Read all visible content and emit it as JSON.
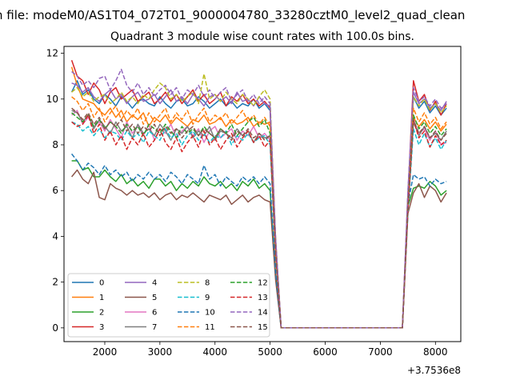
{
  "figure": {
    "suptitle": "n file: modeM0/AS1T04_072T01_9000004780_33280cztM0_level2_quad_clean"
  },
  "chart_data": {
    "type": "line",
    "title": "Quadrant 3 module wise count rates with 100.0s bins.",
    "xlabel": "",
    "ylabel": "",
    "x_offset_label": "+3.7536e8",
    "xlim": [
      1260,
      8460
    ],
    "ylim": [
      -0.6,
      12.3
    ],
    "xticks": [
      2000,
      3000,
      4000,
      5000,
      6000,
      7000,
      8000
    ],
    "yticks": [
      0,
      2,
      4,
      6,
      8,
      10,
      12
    ],
    "x": [
      1400,
      1500,
      1600,
      1700,
      1800,
      1900,
      2000,
      2100,
      2200,
      2300,
      2400,
      2500,
      2600,
      2700,
      2800,
      2900,
      3000,
      3100,
      3200,
      3300,
      3400,
      3500,
      3600,
      3700,
      3800,
      3900,
      4000,
      4100,
      4200,
      4300,
      4400,
      4500,
      4600,
      4700,
      4800,
      4900,
      5000,
      5100,
      5200,
      5300,
      7400,
      7500,
      7600,
      7700,
      7800,
      7900,
      8000,
      8100,
      8200
    ],
    "legend": {
      "location": "lower-left",
      "columns": 4
    },
    "series": [
      {
        "name": "0",
        "color": "#1f77b4",
        "linestyle": "solid",
        "values": [
          10.3,
          10.8,
          10.2,
          10.4,
          10.0,
          9.8,
          10.2,
          10.0,
          9.7,
          10.1,
          9.9,
          9.6,
          9.9,
          10.0,
          9.8,
          9.7,
          10.1,
          9.8,
          9.6,
          9.9,
          10.0,
          9.7,
          9.8,
          10.1,
          9.9,
          9.6,
          9.8,
          10.0,
          9.7,
          9.9,
          9.6,
          9.8,
          9.7,
          10.0,
          9.6,
          9.8,
          9.5,
          3.8,
          0,
          0,
          0,
          5.6,
          10.1,
          9.6,
          9.9,
          9.4,
          9.7,
          9.3,
          9.6
        ]
      },
      {
        "name": "1",
        "color": "#ff7f0e",
        "linestyle": "solid",
        "values": [
          11.4,
          10.6,
          10.0,
          9.9,
          9.8,
          9.5,
          9.3,
          9.6,
          9.2,
          9.5,
          9.0,
          9.3,
          9.1,
          9.4,
          8.8,
          9.2,
          9.0,
          9.3,
          8.9,
          9.2,
          9.0,
          8.8,
          9.1,
          9.0,
          9.3,
          8.9,
          9.0,
          9.2,
          8.8,
          9.1,
          8.9,
          9.0,
          9.2,
          8.8,
          9.0,
          8.9,
          9.0,
          3.5,
          0,
          0,
          0,
          5.4,
          9.2,
          8.8,
          9.1,
          8.7,
          9.0,
          8.6,
          8.9
        ]
      },
      {
        "name": "2",
        "color": "#2ca02c",
        "linestyle": "solid",
        "values": [
          7.3,
          7.3,
          6.9,
          7.0,
          6.6,
          6.6,
          6.9,
          6.6,
          6.4,
          6.7,
          6.3,
          6.5,
          6.2,
          6.4,
          6.1,
          6.5,
          6.5,
          6.2,
          6.4,
          6.0,
          6.3,
          6.1,
          6.4,
          6.2,
          6.6,
          6.3,
          6.2,
          6.4,
          6.1,
          6.3,
          6.0,
          6.4,
          6.2,
          6.5,
          6.1,
          6.3,
          6.0,
          2.3,
          0,
          0,
          0,
          5.3,
          6.1,
          6.2,
          6.1,
          6.4,
          6.2,
          5.8,
          6.0
        ]
      },
      {
        "name": "3",
        "color": "#d62728",
        "linestyle": "solid",
        "values": [
          11.7,
          11.0,
          10.8,
          10.2,
          10.7,
          10.4,
          9.8,
          10.3,
          10.5,
          10.0,
          10.2,
          10.4,
          9.9,
          10.1,
          10.3,
          9.8,
          10.0,
          10.3,
          9.9,
          10.2,
          9.8,
          10.1,
          10.4,
          9.9,
          10.2,
          9.8,
          10.0,
          10.3,
          9.7,
          10.1,
          9.9,
          10.2,
          9.8,
          10.0,
          9.7,
          9.9,
          9.6,
          3.9,
          0,
          0,
          0,
          5.8,
          10.8,
          9.9,
          10.2,
          9.5,
          9.9,
          9.3,
          9.8
        ]
      },
      {
        "name": "4",
        "color": "#9467bd",
        "linestyle": "solid",
        "values": [
          10.7,
          10.6,
          10.3,
          10.5,
          10.1,
          9.9,
          10.2,
          10.4,
          10.0,
          10.2,
          9.8,
          10.1,
          10.3,
          9.9,
          10.0,
          10.2,
          9.8,
          10.1,
          10.4,
          9.9,
          10.1,
          9.8,
          10.2,
          10.0,
          9.7,
          10.1,
          10.2,
          9.9,
          10.1,
          9.8,
          10.3,
          9.9,
          10.0,
          9.7,
          10.1,
          9.8,
          9.7,
          3.8,
          0,
          0,
          0,
          5.9,
          10.3,
          9.8,
          10.0,
          9.6,
          9.8,
          9.5,
          9.9
        ]
      },
      {
        "name": "5",
        "color": "#8c564b",
        "linestyle": "solid",
        "values": [
          6.6,
          6.9,
          6.5,
          6.3,
          6.8,
          5.7,
          5.6,
          6.3,
          6.1,
          6.0,
          5.8,
          6.0,
          5.8,
          5.9,
          5.7,
          5.9,
          5.6,
          5.8,
          5.9,
          5.6,
          5.8,
          5.7,
          5.9,
          5.7,
          5.5,
          5.8,
          5.7,
          5.6,
          5.8,
          5.4,
          5.6,
          5.8,
          5.5,
          5.7,
          5.8,
          5.6,
          5.5,
          2.1,
          0,
          0,
          0,
          5.0,
          5.9,
          6.3,
          5.7,
          6.2,
          6.0,
          5.5,
          5.9
        ]
      },
      {
        "name": "6",
        "color": "#e377c2",
        "linestyle": "solid",
        "values": [
          9.3,
          9.5,
          8.9,
          9.2,
          8.8,
          9.0,
          8.6,
          9.1,
          8.7,
          8.3,
          9.0,
          8.5,
          8.8,
          8.4,
          8.9,
          8.2,
          8.7,
          8.5,
          8.9,
          8.3,
          8.6,
          8.8,
          8.4,
          8.7,
          8.1,
          8.6,
          8.8,
          8.3,
          8.5,
          8.7,
          8.2,
          8.6,
          8.4,
          8.8,
          8.3,
          8.5,
          8.2,
          3.2,
          0,
          0,
          0,
          5.3,
          9.1,
          8.5,
          8.7,
          8.2,
          8.6,
          8.0,
          8.1
        ]
      },
      {
        "name": "7",
        "color": "#7f7f7f",
        "linestyle": "solid",
        "values": [
          9.5,
          9.4,
          9.0,
          9.3,
          8.7,
          9.1,
          8.8,
          8.5,
          9.0,
          8.6,
          8.8,
          8.3,
          8.9,
          8.5,
          8.7,
          8.4,
          8.9,
          8.6,
          8.2,
          8.7,
          8.5,
          8.8,
          8.3,
          8.6,
          8.4,
          8.8,
          8.2,
          8.6,
          8.5,
          8.3,
          8.7,
          8.4,
          8.6,
          8.1,
          8.5,
          8.3,
          8.4,
          3.3,
          0,
          0,
          0,
          5.2,
          9.0,
          8.4,
          8.8,
          8.3,
          8.5,
          8.2,
          8.6
        ]
      },
      {
        "name": "8",
        "color": "#bcbd22",
        "linestyle": "dashed",
        "values": [
          10.3,
          10.5,
          10.1,
          10.3,
          9.9,
          10.1,
          10.2,
          9.8,
          10.0,
          10.3,
          9.9,
          10.1,
          9.8,
          10.2,
          10.0,
          10.4,
          10.7,
          10.5,
          10.0,
          10.2,
          9.9,
          10.1,
          10.3,
          9.8,
          11.1,
          10.0,
          10.2,
          9.9,
          10.3,
          10.0,
          9.8,
          10.2,
          10.0,
          9.7,
          10.1,
          10.4,
          10.0,
          3.9,
          0,
          0,
          0,
          5.7,
          10.1,
          9.7,
          10.0,
          9.5,
          9.8,
          9.4,
          9.7
        ]
      },
      {
        "name": "9",
        "color": "#17becf",
        "linestyle": "dashed",
        "values": [
          9.0,
          8.9,
          8.6,
          8.8,
          8.4,
          8.7,
          8.3,
          8.6,
          8.5,
          8.2,
          8.6,
          8.3,
          8.5,
          8.1,
          8.6,
          8.4,
          8.2,
          8.7,
          8.3,
          8.5,
          8.0,
          8.4,
          8.6,
          8.2,
          8.5,
          8.1,
          8.4,
          8.3,
          8.6,
          8.0,
          8.4,
          8.2,
          8.5,
          8.1,
          8.3,
          8.4,
          8.0,
          3.1,
          0,
          0,
          0,
          5.0,
          8.7,
          8.0,
          8.5,
          7.9,
          8.3,
          7.8,
          8.2
        ]
      },
      {
        "name": "10",
        "color": "#1f77b4",
        "linestyle": "dashed",
        "values": [
          7.6,
          7.3,
          6.9,
          7.2,
          7.0,
          6.7,
          7.1,
          6.7,
          6.9,
          6.6,
          6.8,
          6.4,
          6.7,
          6.5,
          6.8,
          6.5,
          6.7,
          6.4,
          6.8,
          6.6,
          6.3,
          6.7,
          6.5,
          6.3,
          7.1,
          6.5,
          6.7,
          6.2,
          6.6,
          6.4,
          6.2,
          6.6,
          6.4,
          6.6,
          6.3,
          6.6,
          6.3,
          2.4,
          0,
          0,
          0,
          5.4,
          6.7,
          6.5,
          6.6,
          6.2,
          6.5,
          6.3,
          6.4
        ]
      },
      {
        "name": "11",
        "color": "#ff7f0e",
        "linestyle": "dashed",
        "values": [
          10.1,
          9.9,
          9.5,
          9.8,
          9.2,
          9.6,
          9.0,
          9.4,
          9.7,
          9.1,
          9.5,
          9.2,
          9.6,
          8.9,
          9.4,
          9.0,
          9.3,
          9.6,
          9.0,
          9.4,
          9.1,
          9.5,
          8.9,
          9.3,
          9.6,
          9.0,
          9.3,
          9.1,
          9.4,
          8.9,
          9.2,
          9.5,
          9.0,
          9.3,
          8.9,
          9.2,
          8.8,
          3.4,
          0,
          0,
          0,
          5.5,
          9.6,
          9.0,
          9.4,
          8.9,
          9.2,
          8.7,
          9.0
        ]
      },
      {
        "name": "12",
        "color": "#2ca02c",
        "linestyle": "dashed",
        "values": [
          9.4,
          9.2,
          9.0,
          9.3,
          8.8,
          9.1,
          8.7,
          9.0,
          8.8,
          8.5,
          8.9,
          8.6,
          8.8,
          8.4,
          8.9,
          8.7,
          8.5,
          8.9,
          8.6,
          8.3,
          8.8,
          8.5,
          8.7,
          8.4,
          8.8,
          8.5,
          8.3,
          8.7,
          8.5,
          8.9,
          8.4,
          8.7,
          9.0,
          9.2,
          8.8,
          9.1,
          8.5,
          3.3,
          0,
          0,
          0,
          5.4,
          9.3,
          8.7,
          9.0,
          8.5,
          8.8,
          8.4,
          8.7
        ]
      },
      {
        "name": "13",
        "color": "#d62728",
        "linestyle": "dashed",
        "values": [
          9.0,
          8.8,
          8.9,
          9.3,
          8.5,
          8.9,
          8.2,
          8.6,
          8.0,
          8.4,
          7.8,
          8.3,
          8.0,
          8.5,
          7.9,
          8.2,
          8.7,
          8.1,
          7.8,
          8.3,
          7.7,
          8.1,
          8.4,
          7.9,
          8.6,
          8.0,
          8.3,
          7.8,
          8.2,
          8.5,
          7.9,
          8.3,
          8.6,
          8.1,
          8.4,
          7.9,
          8.2,
          3.2,
          0,
          0,
          0,
          5.1,
          9.1,
          8.3,
          8.6,
          7.9,
          8.4,
          8.0,
          8.2
        ]
      },
      {
        "name": "14",
        "color": "#9467bd",
        "linestyle": "dashed",
        "values": [
          11.2,
          11.0,
          10.6,
          10.8,
          10.5,
          10.9,
          11.0,
          10.4,
          10.8,
          11.3,
          10.6,
          10.3,
          10.7,
          10.2,
          10.5,
          10.1,
          10.4,
          10.6,
          10.2,
          10.5,
          10.0,
          10.4,
          10.2,
          10.6,
          10.1,
          10.4,
          10.0,
          10.3,
          10.5,
          9.9,
          10.2,
          10.4,
          9.9,
          10.2,
          9.8,
          10.1,
          9.8,
          3.9,
          0,
          0,
          0,
          6.0,
          10.5,
          9.9,
          10.1,
          9.7,
          10.0,
          9.6,
          9.8
        ]
      },
      {
        "name": "15",
        "color": "#8c564b",
        "linestyle": "dashed",
        "values": [
          9.6,
          9.4,
          9.1,
          9.4,
          8.9,
          9.2,
          8.7,
          9.0,
          8.8,
          9.1,
          8.6,
          8.9,
          8.5,
          8.8,
          8.6,
          8.9,
          8.4,
          8.8,
          8.5,
          8.7,
          8.3,
          8.6,
          8.8,
          8.4,
          8.7,
          8.5,
          8.3,
          8.7,
          8.5,
          8.2,
          8.6,
          8.4,
          8.7,
          8.3,
          8.5,
          8.2,
          8.4,
          3.2,
          0,
          0,
          0,
          5.2,
          9.1,
          8.5,
          8.8,
          8.3,
          8.6,
          8.2,
          8.5
        ]
      }
    ]
  }
}
